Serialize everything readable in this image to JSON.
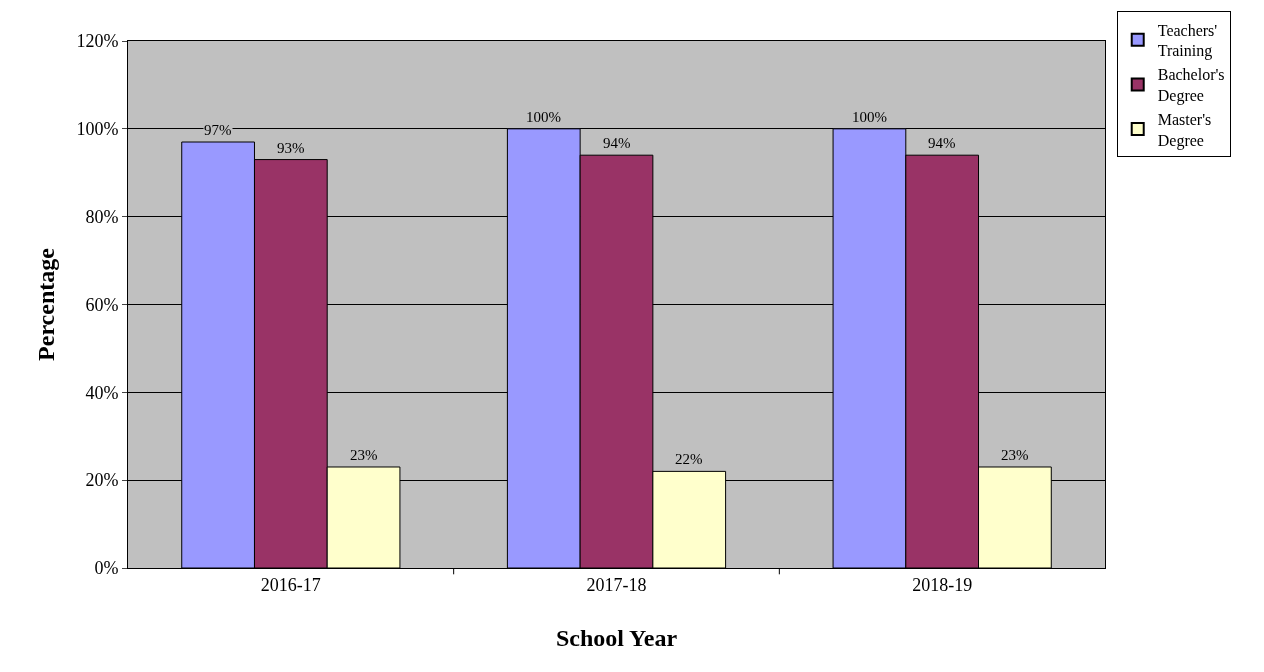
{
  "chart_data": {
    "type": "bar",
    "xlabel": "School Year",
    "ylabel": "Percentage",
    "categories": [
      "2016-17",
      "2017-18",
      "2018-19"
    ],
    "series": [
      {
        "name": "Teachers' Training",
        "color": "#9999ff",
        "values": [
          97,
          100,
          100
        ],
        "value_labels": [
          "97%",
          "100%",
          "100%"
        ]
      },
      {
        "name": "Bachelor's Degree",
        "color": "#993366",
        "values": [
          93,
          94,
          94
        ],
        "value_labels": [
          "93%",
          "94%",
          "94%"
        ]
      },
      {
        "name": "Master's Degree",
        "color": "#ffffcc",
        "values": [
          23,
          22,
          23
        ],
        "value_labels": [
          "23%",
          "22%",
          "23%"
        ]
      }
    ],
    "ylim": [
      0,
      120
    ],
    "yticks": [
      {
        "value": 0,
        "label": "0%"
      },
      {
        "value": 20,
        "label": "20%"
      },
      {
        "value": 40,
        "label": "40%"
      },
      {
        "value": 60,
        "label": "60%"
      },
      {
        "value": 80,
        "label": "80%"
      },
      {
        "value": 100,
        "label": "100%"
      },
      {
        "value": 120,
        "label": "120%"
      }
    ],
    "grid": "y",
    "legend": "top right"
  }
}
